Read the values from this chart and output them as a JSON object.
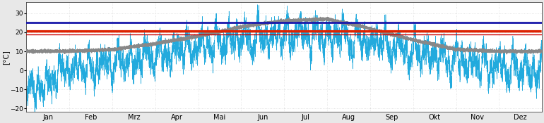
{
  "ylabel": "[°C]",
  "ylim": [
    -22,
    36
  ],
  "yticks": [
    -20,
    -10,
    0,
    10,
    20,
    30
  ],
  "months": [
    "Jan",
    "Feb",
    "Mrz",
    "Apr",
    "Mai",
    "Jun",
    "Jul",
    "Aug",
    "Sep",
    "Okt",
    "Nov",
    "Dez"
  ],
  "blue_line_y": 25.0,
  "red_line_y": 19.0,
  "blue_line_color": "#1a1aaa",
  "red_line_color": "#cc0000",
  "outdoor_color": "#22aadd",
  "indoor_color": "#888888",
  "setpoint_color": "#dd2200",
  "background_color": "#e8e8e8",
  "plot_bg_color": "#ffffff",
  "grid_color": "#aaaaaa",
  "num_points": 17520,
  "outdoor_monthly_mean": [
    -1,
    0,
    3,
    8,
    13,
    17,
    19,
    19,
    15,
    10,
    5,
    2
  ],
  "outdoor_monthly_std": [
    6,
    6,
    6,
    6,
    7,
    7,
    7,
    7,
    6,
    5,
    5,
    5
  ],
  "indoor_monthly_mean": [
    10,
    10,
    11,
    14,
    18,
    23,
    26,
    27,
    22,
    16,
    11,
    10
  ],
  "indoor_monthly_std": [
    1.5,
    1.5,
    1.5,
    1.5,
    2.0,
    2.0,
    2.0,
    2.0,
    2.0,
    1.5,
    1.5,
    1.5
  ],
  "setpoint_value": 20.5,
  "setpoint_on_months": [
    0,
    1,
    2,
    3,
    8,
    9,
    10,
    11
  ],
  "blue_lw": 2.0,
  "red_lw": 1.0
}
